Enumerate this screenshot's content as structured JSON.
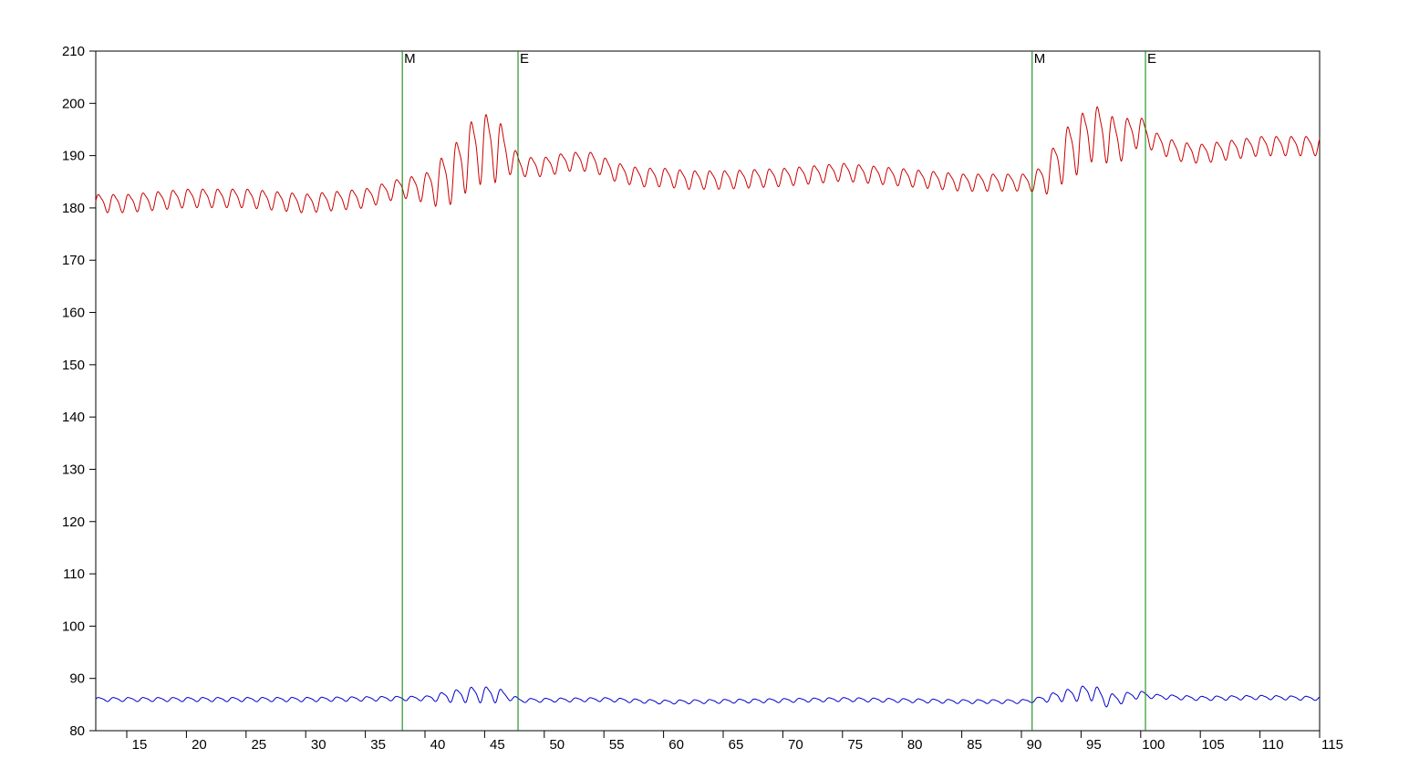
{
  "chart_data": {
    "type": "line",
    "title": "",
    "xlabel": "",
    "ylabel": "",
    "xlim": [
      12.4,
      115
    ],
    "ylim": [
      80,
      210
    ],
    "grid": false,
    "x_ticks": [
      15,
      20,
      25,
      30,
      35,
      40,
      45,
      50,
      55,
      60,
      65,
      70,
      75,
      80,
      85,
      90,
      95,
      100,
      105,
      110,
      115
    ],
    "y_ticks": [
      80,
      90,
      100,
      110,
      120,
      130,
      140,
      150,
      160,
      170,
      180,
      190,
      200,
      210
    ],
    "markers": [
      {
        "label": "M",
        "x": 38.1
      },
      {
        "label": "E",
        "x": 47.8
      },
      {
        "label": "M",
        "x": 90.9
      },
      {
        "label": "E",
        "x": 100.4
      }
    ],
    "series": [
      {
        "color": "#cc0000",
        "oscillation_period": 1.25,
        "points": [
          [
            12.4,
            181
          ],
          [
            15,
            181
          ],
          [
            20,
            182
          ],
          [
            25,
            182
          ],
          [
            30,
            181
          ],
          [
            35,
            182
          ],
          [
            38,
            184
          ],
          [
            40,
            184
          ],
          [
            42,
            186
          ],
          [
            44,
            191
          ],
          [
            45,
            192
          ],
          [
            46,
            192
          ],
          [
            47,
            190
          ],
          [
            48,
            188
          ],
          [
            50,
            188
          ],
          [
            52,
            189
          ],
          [
            54,
            189
          ],
          [
            56,
            187
          ],
          [
            58,
            186
          ],
          [
            60,
            186
          ],
          [
            62,
            185.5
          ],
          [
            65,
            185.5
          ],
          [
            70,
            186
          ],
          [
            75,
            187
          ],
          [
            80,
            186
          ],
          [
            85,
            185
          ],
          [
            90,
            185
          ],
          [
            91,
            185
          ],
          [
            92,
            186
          ],
          [
            93,
            189
          ],
          [
            95,
            193
          ],
          [
            96,
            195
          ],
          [
            98,
            193
          ],
          [
            100,
            195
          ],
          [
            101,
            193
          ],
          [
            103,
            191
          ],
          [
            105,
            190.5
          ],
          [
            110,
            192
          ],
          [
            113,
            192
          ],
          [
            115,
            192
          ]
        ],
        "amplitude": [
          [
            12.4,
            1.6
          ],
          [
            38,
            1.7
          ],
          [
            40,
            2.5
          ],
          [
            41,
            4
          ],
          [
            44,
            6
          ],
          [
            46,
            6
          ],
          [
            47,
            3
          ],
          [
            48,
            1.7
          ],
          [
            90,
            1.5
          ],
          [
            91,
            1.6
          ],
          [
            92,
            3
          ],
          [
            94,
            5
          ],
          [
            96,
            5
          ],
          [
            98,
            4
          ],
          [
            100,
            2.5
          ],
          [
            101,
            1.7
          ],
          [
            115,
            1.7
          ]
        ]
      },
      {
        "color": "#0000cc",
        "oscillation_period": 1.25,
        "points": [
          [
            12.4,
            86
          ],
          [
            20,
            86
          ],
          [
            30,
            86
          ],
          [
            38,
            86.2
          ],
          [
            40,
            86.2
          ],
          [
            42,
            86.6
          ],
          [
            44,
            87
          ],
          [
            46,
            87
          ],
          [
            47,
            86.5
          ],
          [
            48,
            85.8
          ],
          [
            55,
            86
          ],
          [
            60,
            85.5
          ],
          [
            70,
            85.8
          ],
          [
            75,
            86
          ],
          [
            80,
            85.8
          ],
          [
            85,
            85.6
          ],
          [
            90,
            85.6
          ],
          [
            91,
            85.8
          ],
          [
            93,
            86.6
          ],
          [
            95,
            87.2
          ],
          [
            96,
            87.5
          ],
          [
            97,
            86
          ],
          [
            98,
            86
          ],
          [
            99,
            86.6
          ],
          [
            100,
            87
          ],
          [
            101,
            86.6
          ],
          [
            105,
            86.2
          ],
          [
            110,
            86.4
          ],
          [
            115,
            86.2
          ]
        ],
        "amplitude": [
          [
            12.4,
            0.35
          ],
          [
            40,
            0.4
          ],
          [
            42,
            1
          ],
          [
            44,
            1.4
          ],
          [
            46,
            1.4
          ],
          [
            47,
            0.6
          ],
          [
            48,
            0.35
          ],
          [
            91,
            0.35
          ],
          [
            93,
            0.9
          ],
          [
            95,
            1.3
          ],
          [
            96,
            1.5
          ],
          [
            98,
            1
          ],
          [
            100,
            0.6
          ],
          [
            101,
            0.4
          ],
          [
            115,
            0.35
          ]
        ]
      }
    ]
  }
}
